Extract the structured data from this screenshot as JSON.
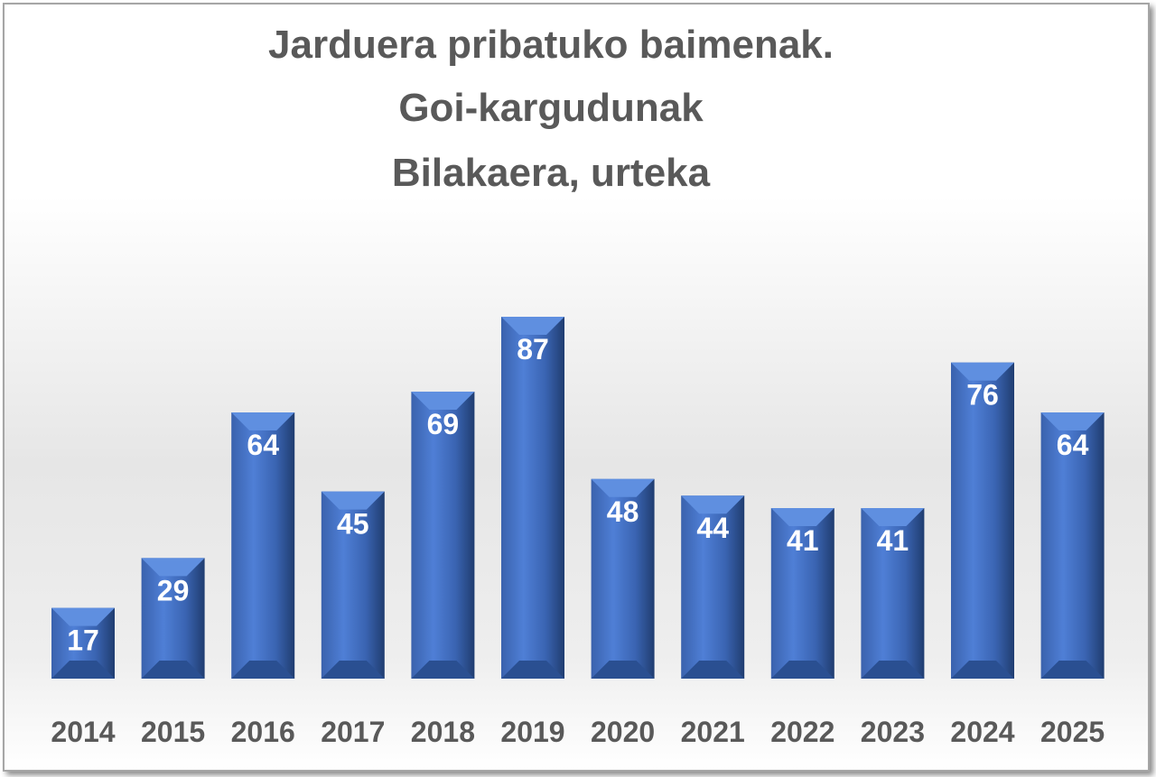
{
  "chart_data": {
    "type": "bar",
    "title": [
      "Jarduera pribatuko baimenak.",
      "Goi-kargudunak",
      "Bilakaera, urteka"
    ],
    "categories": [
      "2014",
      "2015",
      "2016",
      "2017",
      "2018",
      "2019",
      "2020",
      "2021",
      "2022",
      "2023",
      "2024",
      "2025"
    ],
    "values": [
      17,
      29,
      64,
      45,
      69,
      87,
      48,
      44,
      41,
      41,
      76,
      64
    ],
    "xlabel": "",
    "ylabel": "",
    "ylim": [
      0,
      87
    ],
    "grid": false,
    "legend": "none",
    "colors": {
      "bar": "#4472c4",
      "title": "#595959",
      "data_label": "#ffffff",
      "tick_label": "#595959"
    }
  }
}
